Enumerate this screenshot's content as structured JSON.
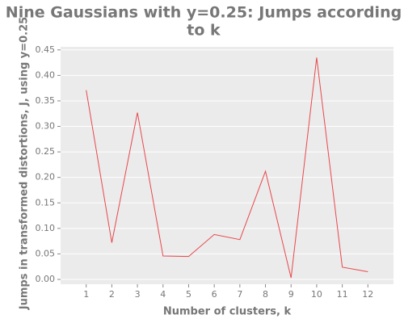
{
  "chart_data": {
    "type": "line",
    "title_lines": [
      "Nine Gaussians with y=0.25: Jumps according",
      "to k"
    ],
    "x_label": "Number of clusters, k",
    "y_label": "Jumps in transformed distortions, J, using y=0.25",
    "x": [
      1,
      2,
      3,
      4,
      5,
      6,
      7,
      8,
      9,
      10,
      11,
      12
    ],
    "series": [
      {
        "color": "#e8474c",
        "values": [
          0.371,
          0.072,
          0.327,
          0.046,
          0.045,
          0.088,
          0.078,
          0.212,
          0.003,
          0.435,
          0.024,
          0.015
        ]
      }
    ],
    "xlim": [
      0,
      13
    ],
    "xticks": [
      1,
      2,
      3,
      4,
      5,
      6,
      7,
      8,
      9,
      10,
      11,
      12
    ],
    "ylim": [
      -0.0095,
      0.456
    ],
    "yticks": [
      {
        "value": 0,
        "label": "0.00"
      },
      {
        "value": 0.05,
        "label": "0.05"
      },
      {
        "value": 0.1,
        "label": "0.10"
      },
      {
        "value": 0.15,
        "label": "0.15"
      },
      {
        "value": 0.2,
        "label": "0.20"
      },
      {
        "value": 0.25,
        "label": "0.25"
      },
      {
        "value": 0.3,
        "label": "0.30"
      },
      {
        "value": 0.35,
        "label": "0.35"
      },
      {
        "value": 0.4,
        "label": "0.40"
      },
      {
        "value": 0.45,
        "label": "0.45"
      }
    ],
    "grid": true
  }
}
